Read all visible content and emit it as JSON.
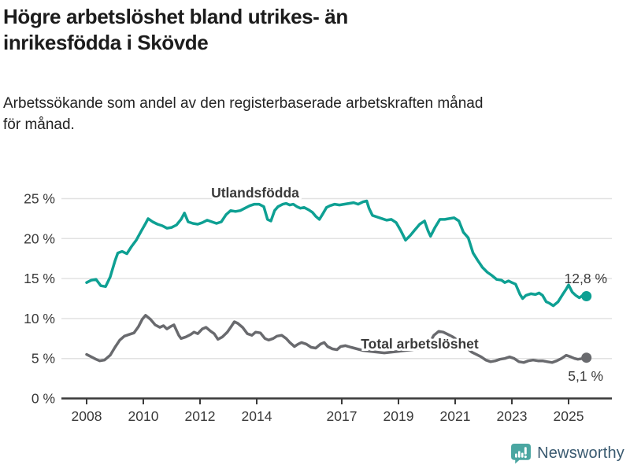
{
  "header": {
    "title_lines": [
      "Högre arbetslöshet bland utrikes- än",
      "inrikesfödda i Skövde"
    ],
    "subtitle_lines": [
      "Arbetssökande som andel av den registerbaserade arbetskraften månad",
      "för månad."
    ]
  },
  "footer": {
    "brand": "Newsworthy"
  },
  "colors": {
    "accent_teal": "#0ea093",
    "series_gray": "#696a6e",
    "axis_text": "#3a3a3a",
    "logo_icon_teal": "#4aa6a1",
    "logo_text_blue": "#3a5a70"
  },
  "chart_data": {
    "type": "line",
    "title": "Högre arbetslöshet bland utrikes- än inrikesfödda i Skövde",
    "subtitle": "Arbetssökande som andel av den registerbaserade arbetskraften månad för månad.",
    "grid": true,
    "legend_position": "inline-labels",
    "x_axis": {
      "ticks": [
        2008,
        2010,
        2012,
        2014,
        2017,
        2019,
        2021,
        2023,
        2025
      ],
      "range": [
        2007.9,
        2025.8
      ]
    },
    "y_axis": {
      "ticks": [
        0,
        5,
        10,
        15,
        20,
        25
      ],
      "tick_labels": [
        "0 %",
        "5 %",
        "10 %",
        "15 %",
        "20 %",
        "25 %"
      ],
      "range": [
        0,
        26
      ],
      "unit": "%"
    },
    "series": [
      {
        "name": "Utlandsfödda",
        "color": "#0ea093",
        "end_label": "12,8 %",
        "end_value": 12.8,
        "points": [
          [
            2008.0,
            14.5
          ],
          [
            2008.17,
            14.8
          ],
          [
            2008.33,
            14.9
          ],
          [
            2008.5,
            14.1
          ],
          [
            2008.67,
            14.0
          ],
          [
            2008.83,
            15.2
          ],
          [
            2009.0,
            17.2
          ],
          [
            2009.1,
            18.2
          ],
          [
            2009.25,
            18.4
          ],
          [
            2009.42,
            18.1
          ],
          [
            2009.58,
            19.0
          ],
          [
            2009.75,
            19.8
          ],
          [
            2009.92,
            20.9
          ],
          [
            2010.08,
            21.9
          ],
          [
            2010.17,
            22.5
          ],
          [
            2010.33,
            22.1
          ],
          [
            2010.5,
            21.8
          ],
          [
            2010.67,
            21.6
          ],
          [
            2010.83,
            21.3
          ],
          [
            2011.0,
            21.4
          ],
          [
            2011.17,
            21.7
          ],
          [
            2011.33,
            22.4
          ],
          [
            2011.45,
            23.2
          ],
          [
            2011.58,
            22.1
          ],
          [
            2011.75,
            21.9
          ],
          [
            2011.92,
            21.8
          ],
          [
            2012.08,
            22.0
          ],
          [
            2012.25,
            22.3
          ],
          [
            2012.42,
            22.1
          ],
          [
            2012.58,
            21.9
          ],
          [
            2012.75,
            22.1
          ],
          [
            2012.92,
            23.0
          ],
          [
            2013.08,
            23.5
          ],
          [
            2013.25,
            23.4
          ],
          [
            2013.42,
            23.5
          ],
          [
            2013.58,
            23.8
          ],
          [
            2013.75,
            24.1
          ],
          [
            2013.92,
            24.3
          ],
          [
            2014.08,
            24.3
          ],
          [
            2014.25,
            24.0
          ],
          [
            2014.38,
            22.4
          ],
          [
            2014.5,
            22.2
          ],
          [
            2014.63,
            23.5
          ],
          [
            2014.75,
            24.0
          ],
          [
            2014.92,
            24.3
          ],
          [
            2015.04,
            24.4
          ],
          [
            2015.17,
            24.2
          ],
          [
            2015.29,
            24.3
          ],
          [
            2015.42,
            24.0
          ],
          [
            2015.54,
            23.8
          ],
          [
            2015.67,
            23.9
          ],
          [
            2015.83,
            23.6
          ],
          [
            2015.96,
            23.3
          ],
          [
            2016.08,
            22.8
          ],
          [
            2016.21,
            22.4
          ],
          [
            2016.33,
            23.1
          ],
          [
            2016.46,
            23.9
          ],
          [
            2016.58,
            24.1
          ],
          [
            2016.75,
            24.3
          ],
          [
            2016.92,
            24.2
          ],
          [
            2017.08,
            24.3
          ],
          [
            2017.25,
            24.4
          ],
          [
            2017.42,
            24.5
          ],
          [
            2017.58,
            24.3
          ],
          [
            2017.75,
            24.6
          ],
          [
            2017.88,
            24.7
          ],
          [
            2017.96,
            23.8
          ],
          [
            2018.08,
            22.9
          ],
          [
            2018.25,
            22.7
          ],
          [
            2018.42,
            22.5
          ],
          [
            2018.58,
            22.3
          ],
          [
            2018.75,
            22.4
          ],
          [
            2018.92,
            22.0
          ],
          [
            2019.08,
            21.0
          ],
          [
            2019.25,
            19.8
          ],
          [
            2019.42,
            20.4
          ],
          [
            2019.58,
            21.1
          ],
          [
            2019.75,
            21.8
          ],
          [
            2019.92,
            22.2
          ],
          [
            2020.04,
            21.0
          ],
          [
            2020.13,
            20.3
          ],
          [
            2020.29,
            21.4
          ],
          [
            2020.46,
            22.4
          ],
          [
            2020.63,
            22.4
          ],
          [
            2020.79,
            22.5
          ],
          [
            2020.96,
            22.6
          ],
          [
            2021.13,
            22.2
          ],
          [
            2021.29,
            20.8
          ],
          [
            2021.46,
            20.1
          ],
          [
            2021.63,
            18.2
          ],
          [
            2021.79,
            17.3
          ],
          [
            2021.96,
            16.4
          ],
          [
            2022.13,
            15.8
          ],
          [
            2022.29,
            15.4
          ],
          [
            2022.46,
            14.9
          ],
          [
            2022.63,
            14.8
          ],
          [
            2022.75,
            14.5
          ],
          [
            2022.88,
            14.7
          ],
          [
            2023.0,
            14.5
          ],
          [
            2023.13,
            14.3
          ],
          [
            2023.29,
            13.0
          ],
          [
            2023.38,
            12.5
          ],
          [
            2023.5,
            12.9
          ],
          [
            2023.67,
            13.1
          ],
          [
            2023.83,
            13.0
          ],
          [
            2023.96,
            13.2
          ],
          [
            2024.08,
            12.9
          ],
          [
            2024.21,
            12.1
          ],
          [
            2024.33,
            11.9
          ],
          [
            2024.46,
            11.6
          ],
          [
            2024.63,
            12.1
          ],
          [
            2024.79,
            13.0
          ],
          [
            2024.92,
            13.7
          ],
          [
            2025.0,
            14.2
          ],
          [
            2025.13,
            13.3
          ],
          [
            2025.25,
            12.9
          ],
          [
            2025.38,
            12.6
          ],
          [
            2025.5,
            12.9
          ],
          [
            2025.63,
            12.8
          ]
        ]
      },
      {
        "name": "Total arbetslöshet",
        "color": "#696a6e",
        "end_label": "5,1 %",
        "end_value": 5.1,
        "points": [
          [
            2008.0,
            5.5
          ],
          [
            2008.17,
            5.2
          ],
          [
            2008.33,
            4.9
          ],
          [
            2008.46,
            4.7
          ],
          [
            2008.63,
            4.8
          ],
          [
            2008.83,
            5.4
          ],
          [
            2009.0,
            6.4
          ],
          [
            2009.17,
            7.3
          ],
          [
            2009.33,
            7.8
          ],
          [
            2009.5,
            8.0
          ],
          [
            2009.67,
            8.2
          ],
          [
            2009.83,
            9.0
          ],
          [
            2009.96,
            9.9
          ],
          [
            2010.08,
            10.4
          ],
          [
            2010.25,
            9.9
          ],
          [
            2010.42,
            9.2
          ],
          [
            2010.58,
            8.9
          ],
          [
            2010.71,
            9.1
          ],
          [
            2010.83,
            8.7
          ],
          [
            2010.96,
            9.0
          ],
          [
            2011.08,
            9.2
          ],
          [
            2011.25,
            7.9
          ],
          [
            2011.33,
            7.5
          ],
          [
            2011.5,
            7.7
          ],
          [
            2011.67,
            8.0
          ],
          [
            2011.79,
            8.3
          ],
          [
            2011.92,
            8.1
          ],
          [
            2012.08,
            8.7
          ],
          [
            2012.21,
            8.9
          ],
          [
            2012.38,
            8.4
          ],
          [
            2012.5,
            8.1
          ],
          [
            2012.63,
            7.4
          ],
          [
            2012.79,
            7.7
          ],
          [
            2012.96,
            8.3
          ],
          [
            2013.08,
            8.9
          ],
          [
            2013.21,
            9.6
          ],
          [
            2013.33,
            9.4
          ],
          [
            2013.5,
            8.9
          ],
          [
            2013.67,
            8.1
          ],
          [
            2013.83,
            7.9
          ],
          [
            2013.96,
            8.3
          ],
          [
            2014.13,
            8.2
          ],
          [
            2014.29,
            7.5
          ],
          [
            2014.42,
            7.3
          ],
          [
            2014.58,
            7.5
          ],
          [
            2014.71,
            7.8
          ],
          [
            2014.88,
            7.9
          ],
          [
            2015.04,
            7.5
          ],
          [
            2015.17,
            7.0
          ],
          [
            2015.33,
            6.5
          ],
          [
            2015.46,
            6.8
          ],
          [
            2015.58,
            7.0
          ],
          [
            2015.75,
            6.8
          ],
          [
            2015.92,
            6.4
          ],
          [
            2016.08,
            6.3
          ],
          [
            2016.25,
            6.8
          ],
          [
            2016.38,
            7.0
          ],
          [
            2016.5,
            6.5
          ],
          [
            2016.67,
            6.2
          ],
          [
            2016.83,
            6.1
          ],
          [
            2016.96,
            6.5
          ],
          [
            2017.13,
            6.6
          ],
          [
            2017.33,
            6.4
          ],
          [
            2017.54,
            6.2
          ],
          [
            2017.75,
            6.0
          ],
          [
            2018.0,
            5.9
          ],
          [
            2018.25,
            5.8
          ],
          [
            2018.5,
            5.7
          ],
          [
            2018.75,
            5.8
          ],
          [
            2019.0,
            5.9
          ],
          [
            2019.25,
            6.0
          ],
          [
            2019.5,
            6.1
          ],
          [
            2019.75,
            6.3
          ],
          [
            2019.92,
            6.4
          ],
          [
            2020.08,
            6.9
          ],
          [
            2020.25,
            7.9
          ],
          [
            2020.42,
            8.4
          ],
          [
            2020.58,
            8.3
          ],
          [
            2020.75,
            8.0
          ],
          [
            2020.92,
            7.7
          ],
          [
            2021.08,
            7.3
          ],
          [
            2021.25,
            6.8
          ],
          [
            2021.42,
            6.3
          ],
          [
            2021.58,
            5.8
          ],
          [
            2021.75,
            5.5
          ],
          [
            2021.92,
            5.2
          ],
          [
            2022.08,
            4.8
          ],
          [
            2022.25,
            4.6
          ],
          [
            2022.42,
            4.7
          ],
          [
            2022.58,
            4.9
          ],
          [
            2022.75,
            5.0
          ],
          [
            2022.92,
            5.2
          ],
          [
            2023.08,
            5.0
          ],
          [
            2023.25,
            4.6
          ],
          [
            2023.42,
            4.5
          ],
          [
            2023.58,
            4.7
          ],
          [
            2023.75,
            4.8
          ],
          [
            2023.92,
            4.7
          ],
          [
            2024.08,
            4.7
          ],
          [
            2024.25,
            4.6
          ],
          [
            2024.42,
            4.5
          ],
          [
            2024.58,
            4.7
          ],
          [
            2024.75,
            5.0
          ],
          [
            2024.92,
            5.4
          ],
          [
            2025.08,
            5.2
          ],
          [
            2025.21,
            5.0
          ],
          [
            2025.33,
            4.9
          ],
          [
            2025.5,
            5.0
          ],
          [
            2025.63,
            5.1
          ]
        ]
      }
    ]
  }
}
